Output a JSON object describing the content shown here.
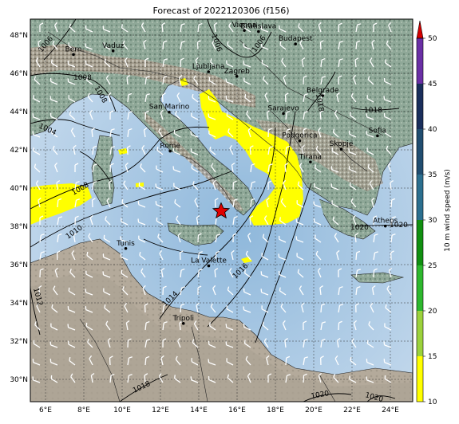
{
  "title": "Forecast of 2022120306 (f156)",
  "lon_ticks": [
    "6°E",
    "8°E",
    "10°E",
    "12°E",
    "14°E",
    "16°E",
    "18°E",
    "20°E",
    "22°E",
    "24°E"
  ],
  "lat_ticks": [
    "48°N",
    "46°N",
    "44°N",
    "42°N",
    "40°N",
    "38°N",
    "36°N",
    "34°N",
    "32°N",
    "30°N"
  ],
  "colorbar": {
    "label": "10 m wind speed (m/s)",
    "ticks": [
      "10",
      "15",
      "20",
      "25",
      "30",
      "35",
      "40",
      "45",
      "50"
    ],
    "colors": [
      "#ffff00",
      "#9cd23c",
      "#2eb82e",
      "#119011",
      "#2c6f8f",
      "#214d70",
      "#1a2e5c",
      "#6a2fa5",
      "#9b3ab8",
      "#d40000"
    ]
  },
  "cities": [
    {
      "name": "Bern",
      "lon": 7.45,
      "lat": 46.95
    },
    {
      "name": "Vaduz",
      "lon": 9.52,
      "lat": 47.14
    },
    {
      "name": "Vienna",
      "lon": 16.37,
      "lat": 48.21
    },
    {
      "name": "Bratislava",
      "lon": 17.11,
      "lat": 48.15
    },
    {
      "name": "Budapest",
      "lon": 19.04,
      "lat": 47.5
    },
    {
      "name": "Ljubljana",
      "lon": 14.5,
      "lat": 46.05
    },
    {
      "name": "Zagreb",
      "lon": 15.98,
      "lat": 45.81
    },
    {
      "name": "Belgrade",
      "lon": 20.46,
      "lat": 44.8
    },
    {
      "name": "San Marino",
      "lon": 12.45,
      "lat": 43.94
    },
    {
      "name": "Sarajevo",
      "lon": 18.41,
      "lat": 43.86
    },
    {
      "name": "Sofia",
      "lon": 23.32,
      "lat": 42.7
    },
    {
      "name": "Podgorica",
      "lon": 19.26,
      "lat": 42.44
    },
    {
      "name": "Skopje",
      "lon": 21.43,
      "lat": 42.0
    },
    {
      "name": "Rome",
      "lon": 12.5,
      "lat": 41.9
    },
    {
      "name": "Tirana",
      "lon": 19.82,
      "lat": 41.33
    },
    {
      "name": "Athens",
      "lon": 23.73,
      "lat": 37.98
    },
    {
      "name": "Tunis",
      "lon": 10.18,
      "lat": 36.81
    },
    {
      "name": "La Valette",
      "lon": 14.51,
      "lat": 35.9
    },
    {
      "name": "Tripoli",
      "lon": 13.19,
      "lat": 32.89
    }
  ],
  "isobar_labels": [
    "1006",
    "1006",
    "1008",
    "1006",
    "1008",
    "1004",
    "1008",
    "1010",
    "1012",
    "1014",
    "1016",
    "1018",
    "1018",
    "1020",
    "1020",
    "1020",
    "1020",
    "1018"
  ],
  "marker": {
    "type": "red-star",
    "lon": 15.2,
    "lat": 38.8
  }
}
